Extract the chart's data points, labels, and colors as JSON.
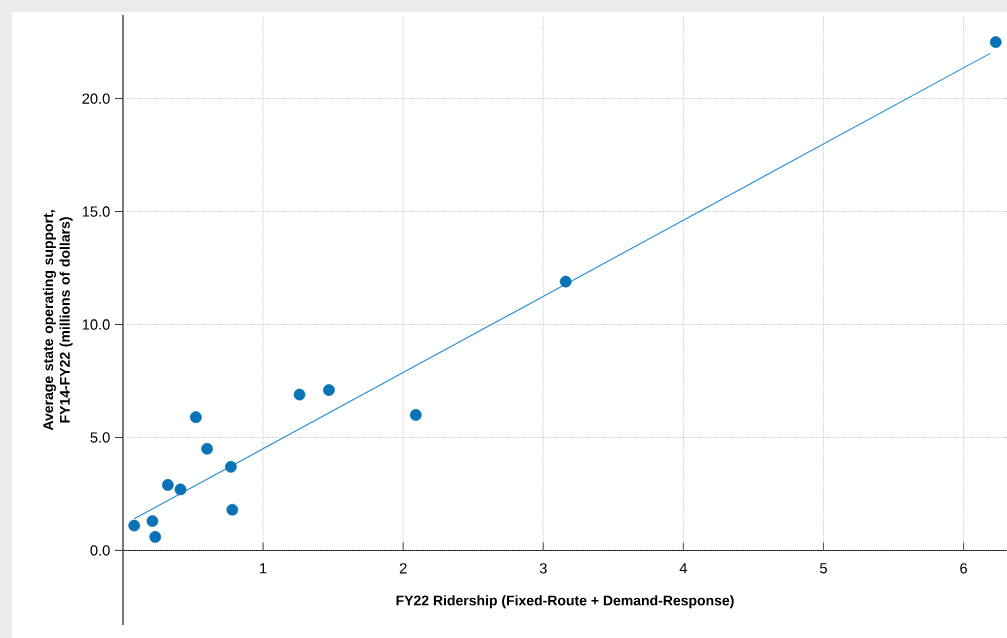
{
  "chart_data": {
    "type": "scatter",
    "xlabel": "FY22 Ridership (Fixed-Route + Demand-Response)",
    "ylabel": "Average state operating support, FY14-FY22 (millions of dollars)",
    "xlim": [
      0,
      6.31
    ],
    "ylim": [
      -3.3,
      23.7
    ],
    "xticks": [
      1,
      2,
      3,
      4,
      5,
      6
    ],
    "yticks": [
      {
        "value": 0,
        "label": "0.0"
      },
      {
        "value": 5,
        "label": "5.0"
      },
      {
        "value": 10,
        "label": "10.0"
      },
      {
        "value": 15,
        "label": "15.0"
      },
      {
        "value": 20,
        "label": "20.0"
      }
    ],
    "grid": true,
    "series": [
      {
        "marker": "circle",
        "color": "#0a72b5",
        "x": [
          0.08,
          0.21,
          0.23,
          0.32,
          0.41,
          0.52,
          0.6,
          0.77,
          0.78,
          1.26,
          1.47,
          2.09,
          3.16,
          6.23
        ],
        "values": [
          1.1,
          1.3,
          0.6,
          2.9,
          2.7,
          5.9,
          4.5,
          3.7,
          1.8,
          6.9,
          7.1,
          6.0,
          11.9,
          22.5
        ]
      },
      {
        "type": "line",
        "marker": "none",
        "color": "#1a8ccf",
        "x": [
          0.08,
          6.19
        ],
        "values": [
          1.4,
          22.0
        ]
      }
    ]
  }
}
